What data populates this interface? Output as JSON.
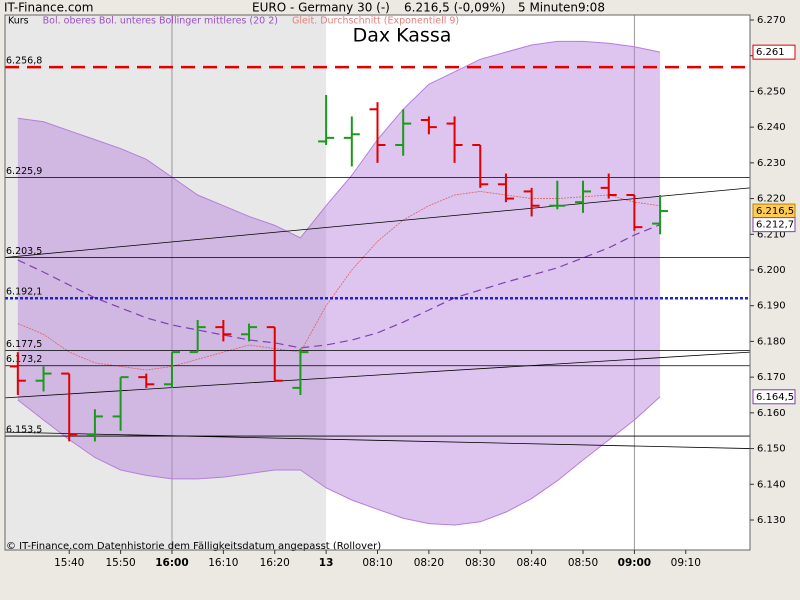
{
  "header": {
    "site": "IT-Finance.com",
    "instrument": "EURO - Germany 30 (-)",
    "quote": "6.216,5 (-0,09%)",
    "interval": "5 Minuten",
    "time": "9:08"
  },
  "legend": [
    {
      "text": "Kurs",
      "color": "#000000"
    },
    {
      "text": "Bol. oberes Bol. unteres Bollinger mittleres (20 2)",
      "color": "#9a4fc8"
    },
    {
      "text": "Gleit. Durchschnitt (Exponentiell 9)",
      "color": "#e08080"
    }
  ],
  "footer": "© IT-Finance.com  Datenhistorie dem Fälligkeitsdatum angepasst (Rollover)",
  "chart_data": {
    "type": "ohlc",
    "title": "Dax Kassa",
    "x": [
      0,
      1,
      2,
      3,
      4,
      5,
      6,
      7,
      8,
      9,
      10,
      11,
      12,
      13,
      14,
      15,
      16,
      17,
      18,
      19,
      20,
      21,
      22,
      23,
      24,
      25
    ],
    "open": [
      6.173,
      6.169,
      6.171,
      6.154,
      6.159,
      6.17,
      6.168,
      6.177,
      6.184,
      6.182,
      6.184,
      6.167,
      6.236,
      6.237,
      6.245,
      6.235,
      6.242,
      6.241,
      6.235,
      6.224,
      6.222,
      6.218,
      6.219,
      6.223,
      6.221,
      6.213
    ],
    "high": [
      6.177,
      6.173,
      6.171,
      6.161,
      6.17,
      6.171,
      6.177,
      6.186,
      6.186,
      6.185,
      6.184,
      6.178,
      6.249,
      6.243,
      6.247,
      6.245,
      6.243,
      6.243,
      6.235,
      6.227,
      6.223,
      6.225,
      6.225,
      6.227,
      6.221,
      6.221
    ],
    "low": [
      6.165,
      6.166,
      6.152,
      6.152,
      6.155,
      6.167,
      6.167,
      6.177,
      6.18,
      6.18,
      6.169,
      6.165,
      6.235,
      6.229,
      6.23,
      6.232,
      6.238,
      6.23,
      6.223,
      6.219,
      6.215,
      6.217,
      6.216,
      6.22,
      6.211,
      6.21
    ],
    "close": [
      6.169,
      6.171,
      6.154,
      6.159,
      6.17,
      6.168,
      6.177,
      6.184,
      6.182,
      6.184,
      6.169,
      6.177,
      6.237,
      6.238,
      6.235,
      6.241,
      6.24,
      6.235,
      6.224,
      6.22,
      6.218,
      6.218,
      6.222,
      6.221,
      6.212,
      6.2165
    ],
    "up_color": "#1a9a1a",
    "down_color": "#e00000",
    "bollinger": {
      "color": "#b57edc",
      "middle_color": "#8040b0",
      "upper": [
        6.2425,
        6.2415,
        6.239,
        6.2365,
        6.234,
        6.231,
        6.226,
        6.221,
        6.218,
        6.215,
        6.2125,
        6.209,
        6.218,
        6.2265,
        6.2365,
        6.245,
        6.252,
        6.2555,
        6.259,
        6.261,
        6.263,
        6.264,
        6.264,
        6.2635,
        6.2625,
        6.261
      ],
      "lower": [
        6.1636,
        6.158,
        6.1525,
        6.1475,
        6.144,
        6.1425,
        6.1415,
        6.1415,
        6.142,
        6.143,
        6.144,
        6.144,
        6.139,
        6.1356,
        6.133,
        6.1305,
        6.129,
        6.1286,
        6.1295,
        6.1322,
        6.136,
        6.141,
        6.1468,
        6.1524,
        6.158,
        6.1645
      ],
      "middle": [
        6.2028,
        6.1994,
        6.1958,
        6.1922,
        6.1894,
        6.1866,
        6.1846,
        6.1832,
        6.1818,
        6.1804,
        6.1796,
        6.1782,
        6.179,
        6.1804,
        6.1824,
        6.1854,
        6.1888,
        6.1922,
        6.1944,
        6.1966,
        6.1986,
        6.2006,
        6.2034,
        6.2062,
        6.2098,
        6.2127
      ]
    },
    "ema": {
      "color": "#e06060",
      "values": [
        6.185,
        6.182,
        6.177,
        6.174,
        6.173,
        6.172,
        6.173,
        6.175,
        6.177,
        6.179,
        6.178,
        6.177,
        6.19,
        6.2,
        6.208,
        6.214,
        6.218,
        6.221,
        6.222,
        6.221,
        6.22,
        6.22,
        6.2205,
        6.221,
        6.219,
        6.218
      ]
    },
    "levels": [
      {
        "value": 6.2568,
        "label": "6.256,8",
        "color": "#e00000",
        "style": "dashed"
      },
      {
        "value": 6.2259,
        "label": "6.225,9",
        "color": "#000000",
        "style": "solid"
      },
      {
        "value": 6.2035,
        "label": "6.203,5",
        "color": "#000000",
        "style": "solid"
      },
      {
        "value": 6.1921,
        "label": "6.192,1",
        "color": "#2020d0",
        "style": "dotted"
      },
      {
        "value": 6.1775,
        "label": "6.177,5",
        "color": "#000000",
        "style": "solid"
      },
      {
        "value": 6.1732,
        "label": "6.173,2",
        "color": "#000000",
        "style": "solid"
      },
      {
        "value": 6.1535,
        "label": "6.153,5",
        "color": "#000000",
        "style": "solid"
      }
    ],
    "trendlines": [
      {
        "x": [
          -0.5,
          28.5
        ],
        "y": [
          6.2035,
          6.223
        ]
      },
      {
        "x": [
          -0.5,
          28.5
        ],
        "y": [
          6.1642,
          6.177
        ]
      },
      {
        "x": [
          -0.5,
          28.5
        ],
        "y": [
          6.1546,
          6.15
        ]
      }
    ],
    "price_tags": [
      {
        "value": 6.261,
        "label": "6.261",
        "color": "#e00000",
        "fill": "#ffffff"
      },
      {
        "value": 6.2165,
        "label": "6.216,5",
        "color": "#c08000",
        "fill": "#ffcc55"
      },
      {
        "value": 6.2127,
        "label": "6.212,7",
        "color": "#8040b0",
        "fill": "#ffffff"
      },
      {
        "value": 6.1645,
        "label": "6.164,5",
        "color": "#8040b0",
        "fill": "#ffffff"
      }
    ],
    "xlim": [
      -0.5,
      28.5
    ],
    "shaded_range": [
      -0.5,
      12
    ],
    "xgrid": [
      6,
      24
    ],
    "xticks": [
      {
        "value": 2,
        "label": "15:40"
      },
      {
        "value": 4,
        "label": "15:50"
      },
      {
        "value": 6,
        "label": "16:00",
        "bold": true
      },
      {
        "value": 8,
        "label": "16:10"
      },
      {
        "value": 10,
        "label": "16:20"
      },
      {
        "value": 12,
        "label": "13",
        "bold": true
      },
      {
        "value": 14,
        "label": "08:10"
      },
      {
        "value": 16,
        "label": "08:20"
      },
      {
        "value": 18,
        "label": "08:30"
      },
      {
        "value": 20,
        "label": "08:40"
      },
      {
        "value": 22,
        "label": "08:50"
      },
      {
        "value": 24,
        "label": "09:00",
        "bold": true
      },
      {
        "value": 26,
        "label": "09:10"
      }
    ],
    "ylim": [
      6.1216,
      6.2714
    ],
    "yticks": [
      {
        "value": 6.13,
        "label": "6.130"
      },
      {
        "value": 6.14,
        "label": "6.140"
      },
      {
        "value": 6.15,
        "label": "6.150"
      },
      {
        "value": 6.16,
        "label": "6.160"
      },
      {
        "value": 6.17,
        "label": "6.170"
      },
      {
        "value": 6.18,
        "label": "6.180"
      },
      {
        "value": 6.19,
        "label": "6.190"
      },
      {
        "value": 6.2,
        "label": "6.200"
      },
      {
        "value": 6.21,
        "label": "6.210"
      },
      {
        "value": 6.22,
        "label": "6.220"
      },
      {
        "value": 6.23,
        "label": "6.230"
      },
      {
        "value": 6.24,
        "label": "6.240"
      },
      {
        "value": 6.25,
        "label": "6.250"
      },
      {
        "value": 6.26,
        "label": "6.260"
      },
      {
        "value": 6.27,
        "label": "6.270"
      }
    ]
  }
}
